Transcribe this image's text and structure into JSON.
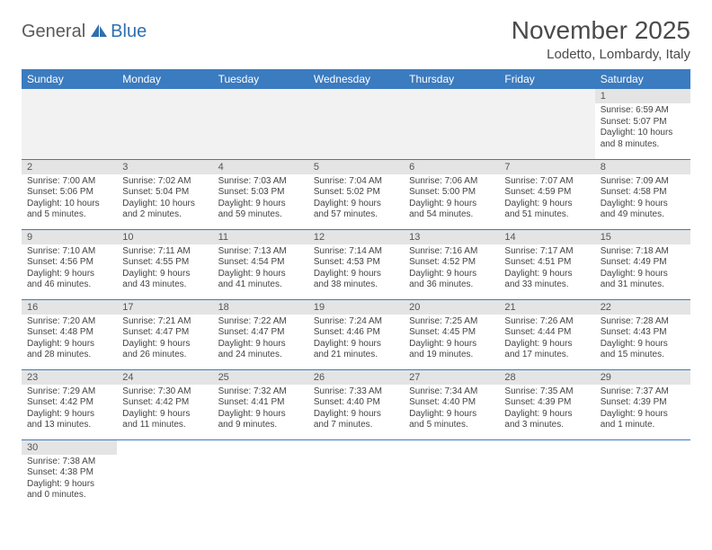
{
  "logo": {
    "part1": "General",
    "part2": "Blue"
  },
  "title": "November 2025",
  "location": "Lodetto, Lombardy, Italy",
  "colors": {
    "header_bg": "#3b7bbf",
    "header_text": "#ffffff",
    "daynum_bg": "#e4e4e4",
    "border": "#3b7bbf",
    "logo_gray": "#5a5a5a",
    "logo_blue": "#2f6fb0"
  },
  "weekdays": [
    "Sunday",
    "Monday",
    "Tuesday",
    "Wednesday",
    "Thursday",
    "Friday",
    "Saturday"
  ],
  "days": {
    "1": {
      "sunrise": "6:59 AM",
      "sunset": "5:07 PM",
      "daylight": "10 hours and 8 minutes."
    },
    "2": {
      "sunrise": "7:00 AM",
      "sunset": "5:06 PM",
      "daylight": "10 hours and 5 minutes."
    },
    "3": {
      "sunrise": "7:02 AM",
      "sunset": "5:04 PM",
      "daylight": "10 hours and 2 minutes."
    },
    "4": {
      "sunrise": "7:03 AM",
      "sunset": "5:03 PM",
      "daylight": "9 hours and 59 minutes."
    },
    "5": {
      "sunrise": "7:04 AM",
      "sunset": "5:02 PM",
      "daylight": "9 hours and 57 minutes."
    },
    "6": {
      "sunrise": "7:06 AM",
      "sunset": "5:00 PM",
      "daylight": "9 hours and 54 minutes."
    },
    "7": {
      "sunrise": "7:07 AM",
      "sunset": "4:59 PM",
      "daylight": "9 hours and 51 minutes."
    },
    "8": {
      "sunrise": "7:09 AM",
      "sunset": "4:58 PM",
      "daylight": "9 hours and 49 minutes."
    },
    "9": {
      "sunrise": "7:10 AM",
      "sunset": "4:56 PM",
      "daylight": "9 hours and 46 minutes."
    },
    "10": {
      "sunrise": "7:11 AM",
      "sunset": "4:55 PM",
      "daylight": "9 hours and 43 minutes."
    },
    "11": {
      "sunrise": "7:13 AM",
      "sunset": "4:54 PM",
      "daylight": "9 hours and 41 minutes."
    },
    "12": {
      "sunrise": "7:14 AM",
      "sunset": "4:53 PM",
      "daylight": "9 hours and 38 minutes."
    },
    "13": {
      "sunrise": "7:16 AM",
      "sunset": "4:52 PM",
      "daylight": "9 hours and 36 minutes."
    },
    "14": {
      "sunrise": "7:17 AM",
      "sunset": "4:51 PM",
      "daylight": "9 hours and 33 minutes."
    },
    "15": {
      "sunrise": "7:18 AM",
      "sunset": "4:49 PM",
      "daylight": "9 hours and 31 minutes."
    },
    "16": {
      "sunrise": "7:20 AM",
      "sunset": "4:48 PM",
      "daylight": "9 hours and 28 minutes."
    },
    "17": {
      "sunrise": "7:21 AM",
      "sunset": "4:47 PM",
      "daylight": "9 hours and 26 minutes."
    },
    "18": {
      "sunrise": "7:22 AM",
      "sunset": "4:47 PM",
      "daylight": "9 hours and 24 minutes."
    },
    "19": {
      "sunrise": "7:24 AM",
      "sunset": "4:46 PM",
      "daylight": "9 hours and 21 minutes."
    },
    "20": {
      "sunrise": "7:25 AM",
      "sunset": "4:45 PM",
      "daylight": "9 hours and 19 minutes."
    },
    "21": {
      "sunrise": "7:26 AM",
      "sunset": "4:44 PM",
      "daylight": "9 hours and 17 minutes."
    },
    "22": {
      "sunrise": "7:28 AM",
      "sunset": "4:43 PM",
      "daylight": "9 hours and 15 minutes."
    },
    "23": {
      "sunrise": "7:29 AM",
      "sunset": "4:42 PM",
      "daylight": "9 hours and 13 minutes."
    },
    "24": {
      "sunrise": "7:30 AM",
      "sunset": "4:42 PM",
      "daylight": "9 hours and 11 minutes."
    },
    "25": {
      "sunrise": "7:32 AM",
      "sunset": "4:41 PM",
      "daylight": "9 hours and 9 minutes."
    },
    "26": {
      "sunrise": "7:33 AM",
      "sunset": "4:40 PM",
      "daylight": "9 hours and 7 minutes."
    },
    "27": {
      "sunrise": "7:34 AM",
      "sunset": "4:40 PM",
      "daylight": "9 hours and 5 minutes."
    },
    "28": {
      "sunrise": "7:35 AM",
      "sunset": "4:39 PM",
      "daylight": "9 hours and 3 minutes."
    },
    "29": {
      "sunrise": "7:37 AM",
      "sunset": "4:39 PM",
      "daylight": "9 hours and 1 minute."
    },
    "30": {
      "sunrise": "7:38 AM",
      "sunset": "4:38 PM",
      "daylight": "9 hours and 0 minutes."
    }
  },
  "labels": {
    "sunrise": "Sunrise: ",
    "sunset": "Sunset: ",
    "daylight": "Daylight: "
  },
  "layout": {
    "first_weekday_index": 6,
    "num_days": 30,
    "cols": 7
  }
}
